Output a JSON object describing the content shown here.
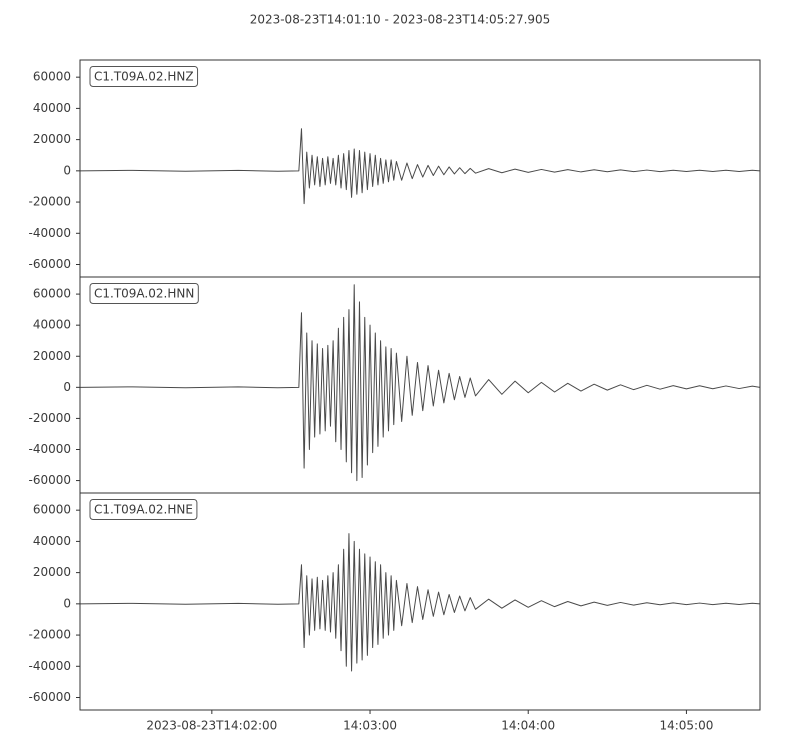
{
  "chart_data": {
    "type": "line",
    "title": "2023-08-23T14:01:10  -  2023-08-23T14:05:27.905",
    "x": [
      "2023-08-23T14:01:10",
      "2023-08-23T14:01:30",
      "2023-08-23T14:01:50",
      "2023-08-23T14:02:10",
      "2023-08-23T14:02:25",
      "2023-08-23T14:02:33",
      "2023-08-23T14:02:34",
      "2023-08-23T14:02:35",
      "2023-08-23T14:02:36",
      "2023-08-23T14:02:37",
      "2023-08-23T14:02:38",
      "2023-08-23T14:02:39",
      "2023-08-23T14:02:40",
      "2023-08-23T14:02:41",
      "2023-08-23T14:02:42",
      "2023-08-23T14:02:43",
      "2023-08-23T14:02:44",
      "2023-08-23T14:02:45",
      "2023-08-23T14:02:46",
      "2023-08-23T14:02:47",
      "2023-08-23T14:02:48",
      "2023-08-23T14:02:49",
      "2023-08-23T14:02:50",
      "2023-08-23T14:02:51",
      "2023-08-23T14:02:52",
      "2023-08-23T14:02:53",
      "2023-08-23T14:02:54",
      "2023-08-23T14:02:55",
      "2023-08-23T14:02:56",
      "2023-08-23T14:02:57",
      "2023-08-23T14:02:58",
      "2023-08-23T14:02:59",
      "2023-08-23T14:03:00",
      "2023-08-23T14:03:01",
      "2023-08-23T14:03:02",
      "2023-08-23T14:03:03",
      "2023-08-23T14:03:04",
      "2023-08-23T14:03:05",
      "2023-08-23T14:03:06",
      "2023-08-23T14:03:07",
      "2023-08-23T14:03:08",
      "2023-08-23T14:03:09",
      "2023-08-23T14:03:10",
      "2023-08-23T14:03:12",
      "2023-08-23T14:03:14",
      "2023-08-23T14:03:16",
      "2023-08-23T14:03:18",
      "2023-08-23T14:03:20",
      "2023-08-23T14:03:22",
      "2023-08-23T14:03:24",
      "2023-08-23T14:03:26",
      "2023-08-23T14:03:28",
      "2023-08-23T14:03:30",
      "2023-08-23T14:03:32",
      "2023-08-23T14:03:34",
      "2023-08-23T14:03:36",
      "2023-08-23T14:03:38",
      "2023-08-23T14:03:40",
      "2023-08-23T14:03:45",
      "2023-08-23T14:03:50",
      "2023-08-23T14:03:55",
      "2023-08-23T14:04:00",
      "2023-08-23T14:04:05",
      "2023-08-23T14:04:10",
      "2023-08-23T14:04:15",
      "2023-08-23T14:04:20",
      "2023-08-23T14:04:25",
      "2023-08-23T14:04:30",
      "2023-08-23T14:04:35",
      "2023-08-23T14:04:40",
      "2023-08-23T14:04:45",
      "2023-08-23T14:04:50",
      "2023-08-23T14:04:55",
      "2023-08-23T14:05:00",
      "2023-08-23T14:05:05",
      "2023-08-23T14:05:10",
      "2023-08-23T14:05:15",
      "2023-08-23T14:05:20",
      "2023-08-23T14:05:25",
      "2023-08-23T14:05:27.905"
    ],
    "series": [
      {
        "name": "C1.T09A.02.HNZ",
        "color": "#4a4a4a",
        "values": [
          0,
          300,
          -300,
          300,
          -300,
          0,
          27000,
          -21000,
          12000,
          -11000,
          10000,
          -9000,
          9000,
          -10000,
          8000,
          -9000,
          9000,
          -8000,
          8000,
          -9000,
          10000,
          -11000,
          11000,
          -12000,
          13000,
          -17000,
          14000,
          -15000,
          13000,
          -14000,
          12000,
          -12000,
          11000,
          -10000,
          10000,
          -9000,
          8000,
          -8000,
          7000,
          -7000,
          7000,
          -6000,
          6000,
          -6000,
          5000,
          -5000,
          4000,
          -4000,
          3500,
          -3000,
          3000,
          -2500,
          2500,
          -2000,
          2000,
          -1800,
          1600,
          -1500,
          1400,
          -1200,
          1100,
          -1000,
          900,
          -800,
          800,
          -700,
          700,
          -600,
          600,
          -500,
          500,
          -500,
          400,
          -400,
          400,
          -400,
          400,
          -400,
          400,
          0
        ]
      },
      {
        "name": "C1.T09A.02.HNN",
        "color": "#4a4a4a",
        "values": [
          0,
          300,
          -300,
          300,
          -300,
          0,
          48000,
          -52000,
          35000,
          -40000,
          30000,
          -32000,
          28000,
          -30000,
          25000,
          -28000,
          27000,
          -25000,
          30000,
          -35000,
          38000,
          -40000,
          45000,
          -48000,
          50000,
          -55000,
          66000,
          -60000,
          55000,
          -58000,
          45000,
          -50000,
          40000,
          -42000,
          35000,
          -38000,
          30000,
          -32000,
          26000,
          -28000,
          25000,
          -24000,
          22000,
          -22000,
          20000,
          -18000,
          16000,
          -15000,
          14000,
          -12000,
          11000,
          -10000,
          9000,
          -8000,
          7000,
          -6500,
          6000,
          -5500,
          5000,
          -4500,
          4000,
          -3500,
          3200,
          -3000,
          2600,
          -2400,
          2000,
          -1800,
          1600,
          -1500,
          1300,
          -1200,
          1100,
          -1000,
          1000,
          -900,
          900,
          -800,
          800,
          0
        ]
      },
      {
        "name": "C1.T09A.02.HNE",
        "color": "#4a4a4a",
        "values": [
          0,
          300,
          -300,
          300,
          -300,
          0,
          25000,
          -28000,
          18000,
          -20000,
          16000,
          -17000,
          17000,
          -16000,
          15000,
          -17000,
          18000,
          -18000,
          20000,
          -22000,
          25000,
          -30000,
          35000,
          -40000,
          45000,
          -43000,
          40000,
          -38000,
          35000,
          -36000,
          32000,
          -33000,
          30000,
          -28000,
          27000,
          -26000,
          25000,
          -22000,
          20000,
          -20000,
          18000,
          -17000,
          15000,
          -14000,
          13000,
          -12000,
          11000,
          -10000,
          9000,
          -8000,
          7500,
          -7000,
          6000,
          -5500,
          5000,
          -4500,
          4000,
          -3500,
          3000,
          -2800,
          2500,
          -2200,
          2000,
          -1800,
          1500,
          -1300,
          1100,
          -1000,
          900,
          -800,
          700,
          -600,
          600,
          -500,
          500,
          -500,
          400,
          -400,
          400,
          0
        ]
      }
    ],
    "xlim": [
      "2023-08-23T14:01:10",
      "2023-08-23T14:05:27.905"
    ],
    "xticks": [
      "2023-08-23T14:02:00",
      {
        "value": "2023-08-23T14:03:00",
        "label": "14:03:00"
      },
      {
        "value": "2023-08-23T14:04:00",
        "label": "14:04:00"
      },
      {
        "value": "2023-08-23T14:05:00",
        "label": "14:05:00"
      }
    ],
    "ylim": [
      -68000,
      71000
    ],
    "yticks": [
      -60000,
      -40000,
      -20000,
      0,
      20000,
      40000,
      60000
    ]
  }
}
